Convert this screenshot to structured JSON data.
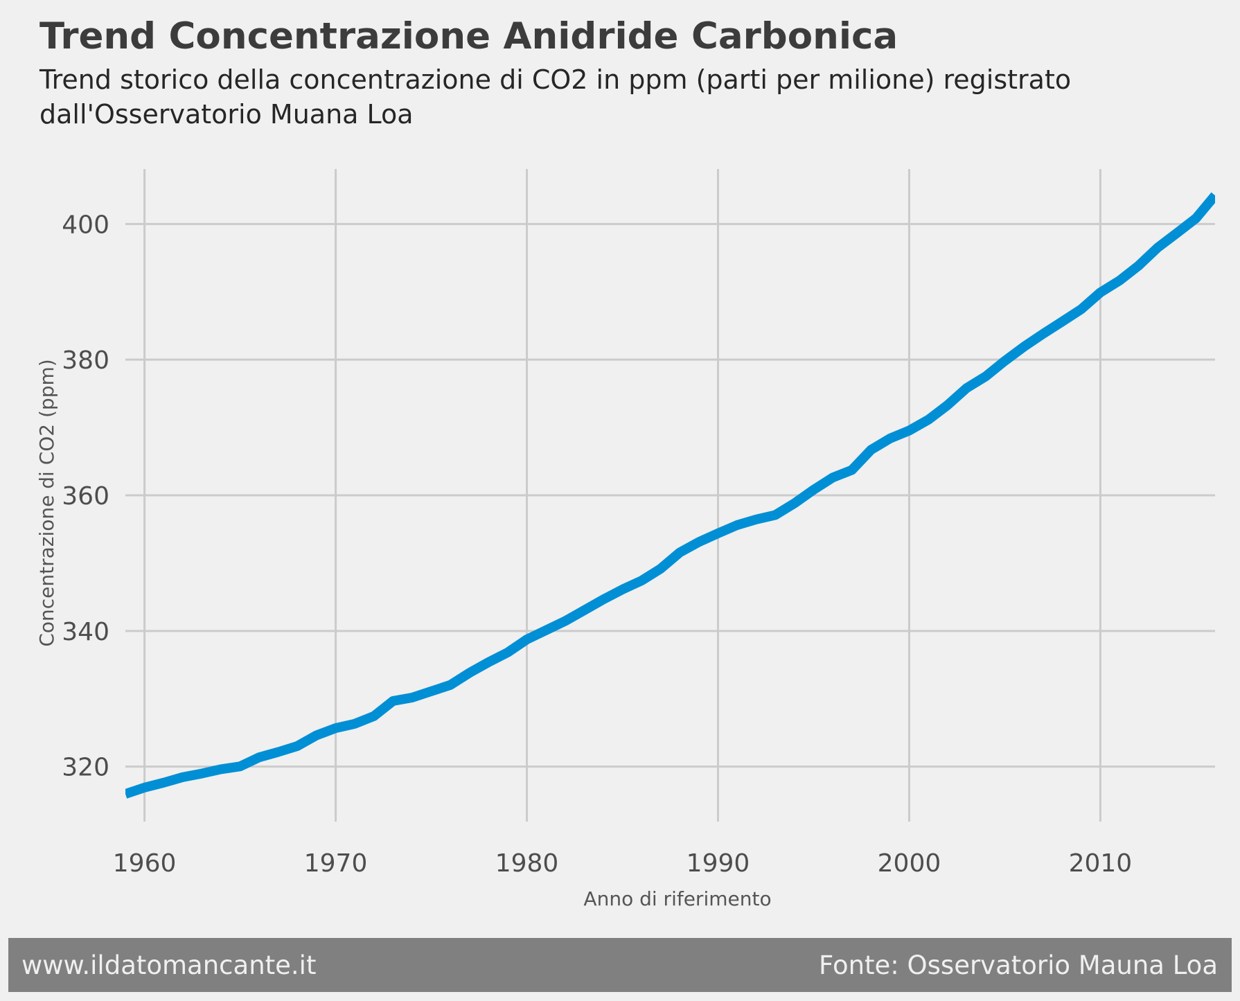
{
  "chart_data": {
    "type": "line",
    "title": "Trend Concentrazione Anidride Carbonica",
    "subtitle": "Trend storico della concentrazione di CO2 in ppm (parti per milione) registrato dall'Osservatorio Muana Loa",
    "xlabel": "Anno di riferimento",
    "ylabel": "Concentrazione di CO2 (ppm)",
    "xlim": [
      1959,
      2016
    ],
    "ylim": [
      311.9,
      408.1
    ],
    "xticks": [
      1960,
      1970,
      1980,
      1990,
      2000,
      2010
    ],
    "yticks": [
      320,
      340,
      360,
      380,
      400
    ],
    "grid": true,
    "color": "#008fd5",
    "series": [
      {
        "x": [
          1959,
          1960,
          1961,
          1962,
          1963,
          1964,
          1965,
          1966,
          1967,
          1968,
          1969,
          1970,
          1971,
          1972,
          1973,
          1974,
          1975,
          1976,
          1977,
          1978,
          1979,
          1980,
          1981,
          1982,
          1983,
          1984,
          1985,
          1986,
          1987,
          1988,
          1989,
          1990,
          1991,
          1992,
          1993,
          1994,
          1995,
          1996,
          1997,
          1998,
          1999,
          2000,
          2001,
          2002,
          2003,
          2004,
          2005,
          2006,
          2007,
          2008,
          2009,
          2010,
          2011,
          2012,
          2013,
          2014,
          2015,
          2016
        ],
        "values": [
          315.97,
          316.91,
          317.64,
          318.45,
          318.99,
          319.62,
          320.04,
          321.38,
          322.16,
          323.04,
          324.62,
          325.68,
          326.32,
          327.45,
          329.68,
          330.18,
          331.11,
          332.04,
          333.83,
          335.4,
          336.84,
          338.75,
          340.11,
          341.45,
          343.05,
          344.65,
          346.12,
          347.42,
          349.19,
          351.57,
          353.12,
          354.39,
          355.61,
          356.45,
          357.1,
          358.83,
          360.82,
          362.61,
          363.73,
          366.7,
          368.38,
          369.55,
          371.14,
          373.28,
          375.8,
          377.52,
          379.8,
          381.9,
          383.79,
          385.6,
          387.43,
          389.9,
          391.65,
          393.85,
          396.52,
          398.65,
          400.83,
          404.21
        ]
      }
    ]
  },
  "footer": {
    "left": "www.ildatomancante.it",
    "right": "Fonte: Osservatorio Mauna Loa"
  }
}
